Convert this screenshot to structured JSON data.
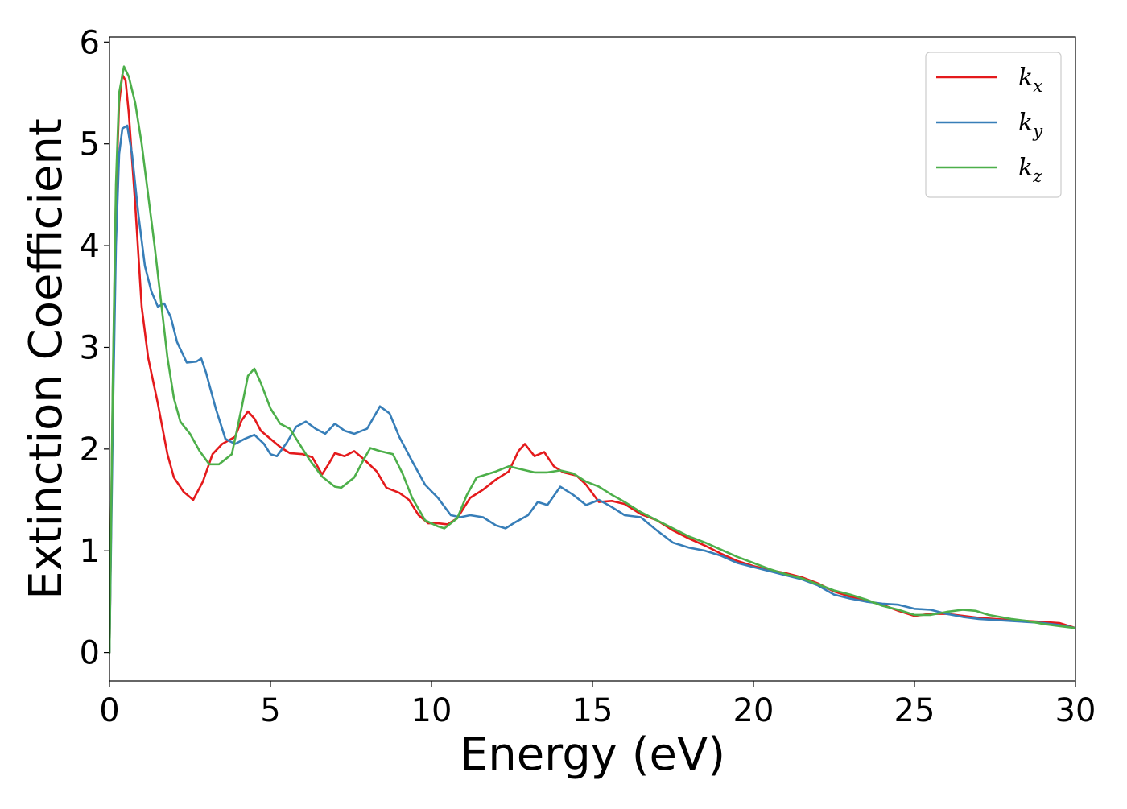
{
  "chart_data": {
    "type": "line",
    "title": "",
    "xlabel": "Energy (eV)",
    "ylabel": "Extinction Coefficient",
    "xlim": [
      0,
      30
    ],
    "ylim": [
      -0.28,
      6.05
    ],
    "x_ticks": [
      0,
      5,
      10,
      15,
      20,
      25,
      30
    ],
    "y_ticks": [
      0,
      1,
      2,
      3,
      4,
      5,
      6
    ],
    "grid": false,
    "legend_position": "top-right",
    "series": [
      {
        "name": "k",
        "subscript": "x",
        "color": "#e41a1c",
        "points": [
          [
            0,
            0
          ],
          [
            0.1,
            2.5
          ],
          [
            0.2,
            4.5
          ],
          [
            0.3,
            5.4
          ],
          [
            0.4,
            5.68
          ],
          [
            0.5,
            5.62
          ],
          [
            0.6,
            5.3
          ],
          [
            0.8,
            4.4
          ],
          [
            1.0,
            3.4
          ],
          [
            1.2,
            2.9
          ],
          [
            1.5,
            2.45
          ],
          [
            1.8,
            1.95
          ],
          [
            2.0,
            1.72
          ],
          [
            2.3,
            1.58
          ],
          [
            2.6,
            1.5
          ],
          [
            2.9,
            1.68
          ],
          [
            3.2,
            1.95
          ],
          [
            3.5,
            2.05
          ],
          [
            3.9,
            2.12
          ],
          [
            4.1,
            2.28
          ],
          [
            4.3,
            2.37
          ],
          [
            4.5,
            2.3
          ],
          [
            4.7,
            2.18
          ],
          [
            5.0,
            2.1
          ],
          [
            5.3,
            2.02
          ],
          [
            5.6,
            1.96
          ],
          [
            6.0,
            1.95
          ],
          [
            6.3,
            1.92
          ],
          [
            6.6,
            1.75
          ],
          [
            6.8,
            1.85
          ],
          [
            7.0,
            1.96
          ],
          [
            7.3,
            1.93
          ],
          [
            7.6,
            1.98
          ],
          [
            7.9,
            1.9
          ],
          [
            8.3,
            1.78
          ],
          [
            8.6,
            1.62
          ],
          [
            9.0,
            1.57
          ],
          [
            9.3,
            1.5
          ],
          [
            9.6,
            1.35
          ],
          [
            9.9,
            1.27
          ],
          [
            10.2,
            1.27
          ],
          [
            10.5,
            1.26
          ],
          [
            10.8,
            1.32
          ],
          [
            11.2,
            1.52
          ],
          [
            11.6,
            1.6
          ],
          [
            12.0,
            1.7
          ],
          [
            12.4,
            1.78
          ],
          [
            12.7,
            1.98
          ],
          [
            12.9,
            2.05
          ],
          [
            13.2,
            1.93
          ],
          [
            13.5,
            1.97
          ],
          [
            13.8,
            1.83
          ],
          [
            14.1,
            1.77
          ],
          [
            14.5,
            1.74
          ],
          [
            14.8,
            1.65
          ],
          [
            15.2,
            1.48
          ],
          [
            15.6,
            1.49
          ],
          [
            16.0,
            1.46
          ],
          [
            16.5,
            1.36
          ],
          [
            17.0,
            1.3
          ],
          [
            17.5,
            1.2
          ],
          [
            18.0,
            1.12
          ],
          [
            18.5,
            1.05
          ],
          [
            19.0,
            0.97
          ],
          [
            19.5,
            0.9
          ],
          [
            20.0,
            0.85
          ],
          [
            20.5,
            0.81
          ],
          [
            21.0,
            0.78
          ],
          [
            21.5,
            0.74
          ],
          [
            22.0,
            0.68
          ],
          [
            22.5,
            0.6
          ],
          [
            23.0,
            0.55
          ],
          [
            23.5,
            0.51
          ],
          [
            24.0,
            0.47
          ],
          [
            24.5,
            0.41
          ],
          [
            25.0,
            0.36
          ],
          [
            25.5,
            0.38
          ],
          [
            26.0,
            0.38
          ],
          [
            26.5,
            0.36
          ],
          [
            27.0,
            0.34
          ],
          [
            27.5,
            0.33
          ],
          [
            28.0,
            0.32
          ],
          [
            28.5,
            0.31
          ],
          [
            29.0,
            0.3
          ],
          [
            29.5,
            0.29
          ],
          [
            30.0,
            0.24
          ]
        ]
      },
      {
        "name": "k",
        "subscript": "y",
        "color": "#377eb8",
        "points": [
          [
            0,
            0
          ],
          [
            0.1,
            2.2
          ],
          [
            0.2,
            4.0
          ],
          [
            0.3,
            4.9
          ],
          [
            0.4,
            5.15
          ],
          [
            0.55,
            5.18
          ],
          [
            0.7,
            4.9
          ],
          [
            0.9,
            4.3
          ],
          [
            1.1,
            3.8
          ],
          [
            1.3,
            3.55
          ],
          [
            1.5,
            3.4
          ],
          [
            1.7,
            3.43
          ],
          [
            1.9,
            3.3
          ],
          [
            2.1,
            3.05
          ],
          [
            2.4,
            2.85
          ],
          [
            2.7,
            2.86
          ],
          [
            2.85,
            2.89
          ],
          [
            3.0,
            2.75
          ],
          [
            3.3,
            2.4
          ],
          [
            3.6,
            2.1
          ],
          [
            3.9,
            2.05
          ],
          [
            4.2,
            2.1
          ],
          [
            4.5,
            2.14
          ],
          [
            4.8,
            2.05
          ],
          [
            5.0,
            1.95
          ],
          [
            5.2,
            1.93
          ],
          [
            5.5,
            2.06
          ],
          [
            5.8,
            2.22
          ],
          [
            6.1,
            2.27
          ],
          [
            6.4,
            2.2
          ],
          [
            6.7,
            2.15
          ],
          [
            7.0,
            2.25
          ],
          [
            7.3,
            2.18
          ],
          [
            7.6,
            2.15
          ],
          [
            8.0,
            2.2
          ],
          [
            8.4,
            2.42
          ],
          [
            8.7,
            2.35
          ],
          [
            9.0,
            2.12
          ],
          [
            9.4,
            1.88
          ],
          [
            9.8,
            1.65
          ],
          [
            10.2,
            1.52
          ],
          [
            10.6,
            1.35
          ],
          [
            10.9,
            1.33
          ],
          [
            11.2,
            1.35
          ],
          [
            11.6,
            1.33
          ],
          [
            12.0,
            1.25
          ],
          [
            12.3,
            1.22
          ],
          [
            12.6,
            1.28
          ],
          [
            13.0,
            1.35
          ],
          [
            13.3,
            1.48
          ],
          [
            13.6,
            1.45
          ],
          [
            14.0,
            1.63
          ],
          [
            14.4,
            1.55
          ],
          [
            14.8,
            1.45
          ],
          [
            15.2,
            1.5
          ],
          [
            15.6,
            1.43
          ],
          [
            16.0,
            1.35
          ],
          [
            16.5,
            1.33
          ],
          [
            17.0,
            1.2
          ],
          [
            17.5,
            1.08
          ],
          [
            18.0,
            1.03
          ],
          [
            18.5,
            1.0
          ],
          [
            19.0,
            0.95
          ],
          [
            19.5,
            0.88
          ],
          [
            20.0,
            0.84
          ],
          [
            20.5,
            0.8
          ],
          [
            21.0,
            0.76
          ],
          [
            21.5,
            0.72
          ],
          [
            22.0,
            0.66
          ],
          [
            22.5,
            0.57
          ],
          [
            23.0,
            0.53
          ],
          [
            23.5,
            0.5
          ],
          [
            24.0,
            0.48
          ],
          [
            24.5,
            0.47
          ],
          [
            25.0,
            0.43
          ],
          [
            25.5,
            0.42
          ],
          [
            26.0,
            0.38
          ],
          [
            26.5,
            0.35
          ],
          [
            27.0,
            0.33
          ],
          [
            27.5,
            0.32
          ],
          [
            28.0,
            0.31
          ],
          [
            28.5,
            0.3
          ],
          [
            29.0,
            0.29
          ],
          [
            29.5,
            0.27
          ],
          [
            30.0,
            0.24
          ]
        ]
      },
      {
        "name": "k",
        "subscript": "z",
        "color": "#4daf4a",
        "points": [
          [
            0,
            0
          ],
          [
            0.1,
            2.6
          ],
          [
            0.2,
            4.6
          ],
          [
            0.3,
            5.5
          ],
          [
            0.45,
            5.76
          ],
          [
            0.6,
            5.66
          ],
          [
            0.8,
            5.4
          ],
          [
            1.0,
            5.0
          ],
          [
            1.2,
            4.5
          ],
          [
            1.4,
            4.0
          ],
          [
            1.6,
            3.45
          ],
          [
            1.8,
            2.9
          ],
          [
            2.0,
            2.5
          ],
          [
            2.2,
            2.27
          ],
          [
            2.5,
            2.15
          ],
          [
            2.8,
            1.98
          ],
          [
            3.1,
            1.85
          ],
          [
            3.4,
            1.85
          ],
          [
            3.8,
            1.95
          ],
          [
            4.1,
            2.4
          ],
          [
            4.3,
            2.72
          ],
          [
            4.5,
            2.79
          ],
          [
            4.7,
            2.65
          ],
          [
            5.0,
            2.4
          ],
          [
            5.3,
            2.25
          ],
          [
            5.6,
            2.2
          ],
          [
            5.9,
            2.05
          ],
          [
            6.2,
            1.9
          ],
          [
            6.6,
            1.73
          ],
          [
            7.0,
            1.63
          ],
          [
            7.2,
            1.62
          ],
          [
            7.6,
            1.72
          ],
          [
            7.9,
            1.9
          ],
          [
            8.1,
            2.01
          ],
          [
            8.4,
            1.98
          ],
          [
            8.8,
            1.95
          ],
          [
            9.1,
            1.76
          ],
          [
            9.4,
            1.52
          ],
          [
            9.8,
            1.3
          ],
          [
            10.2,
            1.24
          ],
          [
            10.4,
            1.22
          ],
          [
            10.8,
            1.32
          ],
          [
            11.1,
            1.55
          ],
          [
            11.4,
            1.72
          ],
          [
            11.8,
            1.76
          ],
          [
            12.0,
            1.78
          ],
          [
            12.4,
            1.83
          ],
          [
            12.8,
            1.8
          ],
          [
            13.2,
            1.77
          ],
          [
            13.6,
            1.77
          ],
          [
            14.0,
            1.79
          ],
          [
            14.4,
            1.76
          ],
          [
            14.8,
            1.68
          ],
          [
            15.2,
            1.63
          ],
          [
            15.6,
            1.55
          ],
          [
            16.0,
            1.48
          ],
          [
            16.5,
            1.38
          ],
          [
            17.0,
            1.3
          ],
          [
            17.5,
            1.22
          ],
          [
            18.0,
            1.14
          ],
          [
            18.5,
            1.08
          ],
          [
            19.0,
            1.01
          ],
          [
            19.5,
            0.94
          ],
          [
            20.0,
            0.88
          ],
          [
            20.5,
            0.82
          ],
          [
            21.0,
            0.77
          ],
          [
            21.5,
            0.73
          ],
          [
            22.0,
            0.67
          ],
          [
            22.5,
            0.61
          ],
          [
            23.0,
            0.57
          ],
          [
            23.5,
            0.52
          ],
          [
            24.0,
            0.46
          ],
          [
            24.5,
            0.42
          ],
          [
            25.0,
            0.37
          ],
          [
            25.5,
            0.37
          ],
          [
            26.0,
            0.4
          ],
          [
            26.5,
            0.42
          ],
          [
            26.9,
            0.41
          ],
          [
            27.3,
            0.37
          ],
          [
            28.0,
            0.33
          ],
          [
            28.5,
            0.31
          ],
          [
            29.0,
            0.28
          ],
          [
            29.5,
            0.26
          ],
          [
            30.0,
            0.24
          ]
        ]
      }
    ]
  }
}
